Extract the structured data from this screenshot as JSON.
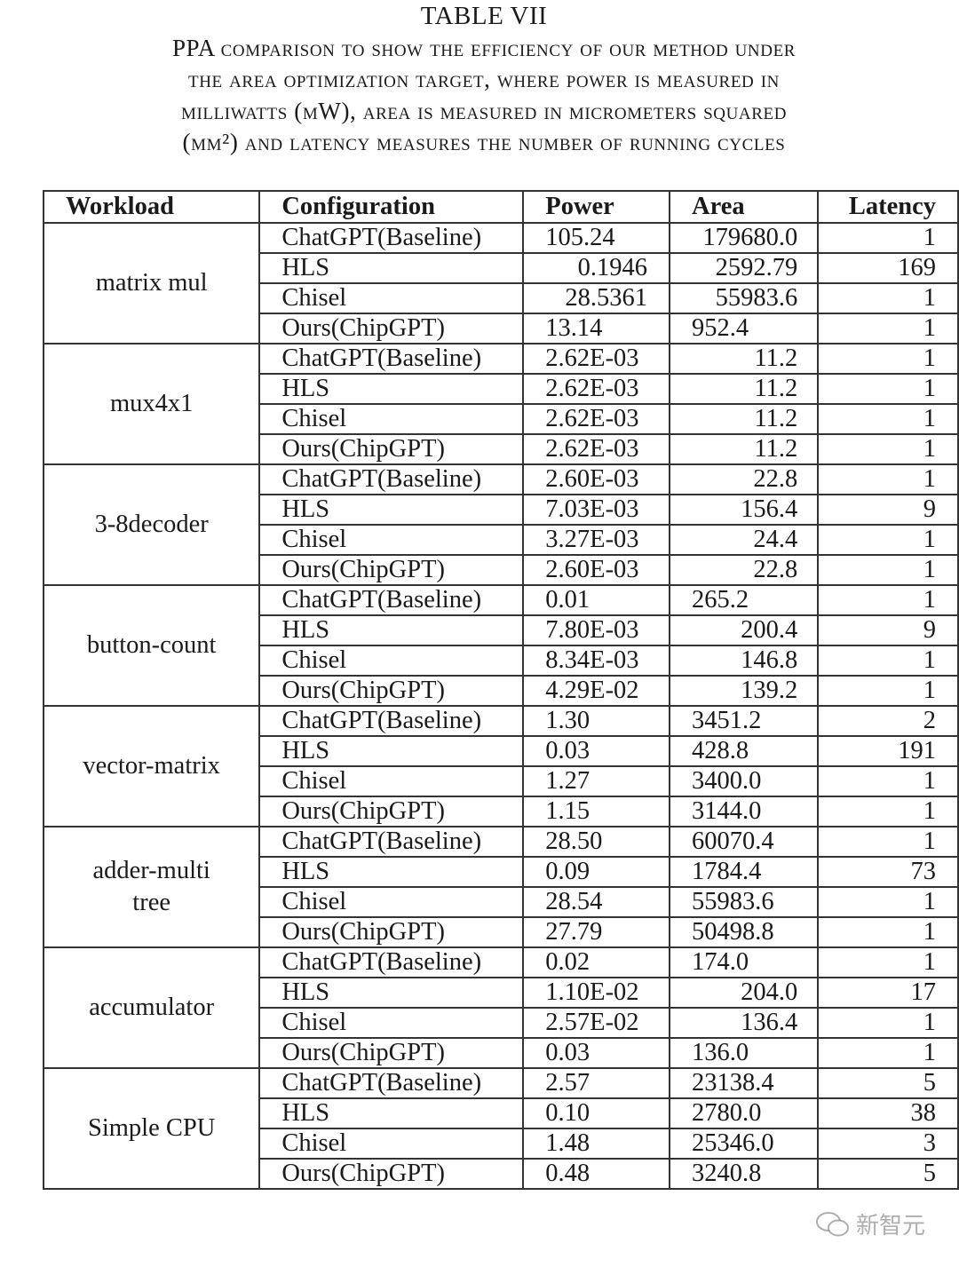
{
  "title": "TABLE VII",
  "caption_lines": [
    "PPA comparison to show the efficiency of our method under",
    "the area optimization target, where power is measured in",
    "milliwatts (mW), area is measured in micrometers squared",
    "(μm²) and latency measures the number of running cycles"
  ],
  "table": {
    "headers": [
      "Workload",
      "Configuration",
      "Power",
      "Area",
      "Latency"
    ],
    "groups": [
      {
        "workload": "matrix mul",
        "rows": [
          [
            "ChatGPT(Baseline)",
            "105.24",
            "179680.0",
            "1"
          ],
          [
            "HLS",
            "0.1946",
            "2592.79",
            "169"
          ],
          [
            "Chisel",
            "28.5361",
            "55983.6",
            "1"
          ],
          [
            "Ours(ChipGPT)",
            "13.14",
            "952.4",
            "1"
          ]
        ]
      },
      {
        "workload": "mux4x1",
        "rows": [
          [
            "ChatGPT(Baseline)",
            "2.62E-03",
            "11.2",
            "1"
          ],
          [
            "HLS",
            "2.62E-03",
            "11.2",
            "1"
          ],
          [
            "Chisel",
            "2.62E-03",
            "11.2",
            "1"
          ],
          [
            "Ours(ChipGPT)",
            "2.62E-03",
            "11.2",
            "1"
          ]
        ]
      },
      {
        "workload": "3-8decoder",
        "rows": [
          [
            "ChatGPT(Baseline)",
            "2.60E-03",
            "22.8",
            "1"
          ],
          [
            "HLS",
            "7.03E-03",
            "156.4",
            "9"
          ],
          [
            "Chisel",
            "3.27E-03",
            "24.4",
            "1"
          ],
          [
            "Ours(ChipGPT)",
            "2.60E-03",
            "22.8",
            "1"
          ]
        ]
      },
      {
        "workload": "button-count",
        "rows": [
          [
            "ChatGPT(Baseline)",
            "0.01",
            "265.2",
            "1"
          ],
          [
            "HLS",
            "7.80E-03",
            "200.4",
            "9"
          ],
          [
            "Chisel",
            "8.34E-03",
            "146.8",
            "1"
          ],
          [
            "Ours(ChipGPT)",
            "4.29E-02",
            "139.2",
            "1"
          ]
        ]
      },
      {
        "workload": "vector-matrix",
        "rows": [
          [
            "ChatGPT(Baseline)",
            "1.30",
            "3451.2",
            "2"
          ],
          [
            "HLS",
            "0.03",
            "428.8",
            "191"
          ],
          [
            "Chisel",
            "1.27",
            "3400.0",
            "1"
          ],
          [
            "Ours(ChipGPT)",
            "1.15",
            "3144.0",
            "1"
          ]
        ]
      },
      {
        "workload": "adder-multi tree",
        "rows": [
          [
            "ChatGPT(Baseline)",
            "28.50",
            "60070.4",
            "1"
          ],
          [
            "HLS",
            "0.09",
            "1784.4",
            "73"
          ],
          [
            "Chisel",
            "28.54",
            "55983.6",
            "1"
          ],
          [
            "Ours(ChipGPT)",
            "27.79",
            "50498.8",
            "1"
          ]
        ]
      },
      {
        "workload": "accumulator",
        "rows": [
          [
            "ChatGPT(Baseline)",
            "0.02",
            "174.0",
            "1"
          ],
          [
            "HLS",
            "1.10E-02",
            "204.0",
            "17"
          ],
          [
            "Chisel",
            "2.57E-02",
            "136.4",
            "1"
          ],
          [
            "Ours(ChipGPT)",
            "0.03",
            "136.0",
            "1"
          ]
        ]
      },
      {
        "workload": "Simple CPU",
        "rows": [
          [
            "ChatGPT(Baseline)",
            "2.57",
            "23138.4",
            "5"
          ],
          [
            "HLS",
            "0.10",
            "2780.0",
            "38"
          ],
          [
            "Chisel",
            "1.48",
            "25346.0",
            "3"
          ],
          [
            "Ours(ChipGPT)",
            "0.48",
            "3240.8",
            "5"
          ]
        ]
      }
    ]
  },
  "watermark": {
    "icon": "wechat-icon",
    "text": "新智元"
  }
}
